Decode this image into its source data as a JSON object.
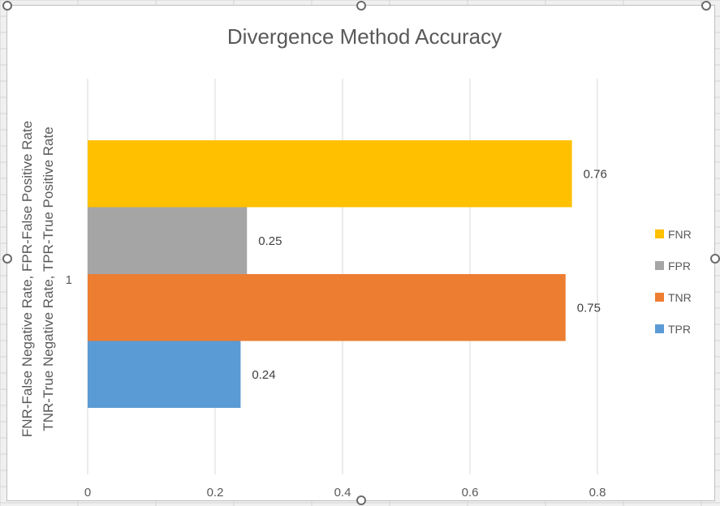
{
  "colors": {
    "FNR": "#FFC000",
    "FPR": "#A5A5A5",
    "TNR": "#ED7D31",
    "TPR": "#5B9BD5",
    "gridline": "#d9d9d9",
    "text": "#595959"
  },
  "chart_data": {
    "type": "bar",
    "orientation": "horizontal",
    "title": "Divergence Method Accuracy",
    "ylabel": [
      "FNR-False Negative Rate, FPR-False Positive Rate",
      "TNR-True Negative Rate, TPR-True Positive Rate"
    ],
    "xlabel": "",
    "categories": [
      "1"
    ],
    "xlim": [
      0,
      0.9
    ],
    "xticks": [
      "0",
      "0.2",
      "0.4",
      "0.6",
      "0.8"
    ],
    "grid": "vertical",
    "legend_position": "right",
    "series": [
      {
        "name": "FNR",
        "values": [
          0.76
        ],
        "label": "0.76"
      },
      {
        "name": "FPR",
        "values": [
          0.25
        ],
        "label": "0.25"
      },
      {
        "name": "TNR",
        "values": [
          0.75
        ],
        "label": "0.75"
      },
      {
        "name": "TPR",
        "values": [
          0.24
        ],
        "label": "0.24"
      }
    ]
  }
}
